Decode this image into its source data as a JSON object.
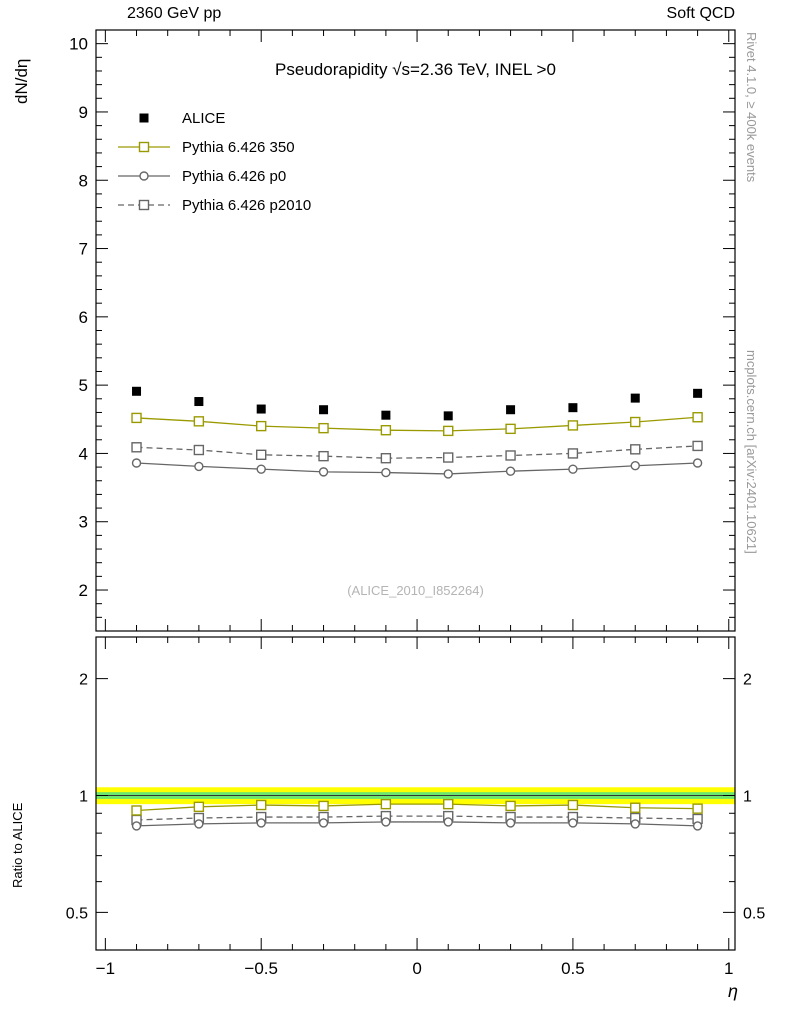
{
  "header": {
    "left": "2360 GeV pp",
    "right": "Soft QCD"
  },
  "side_texts": {
    "top_right": "Rivet 4.1.0, ≥ 400k events",
    "bottom_right": "mcplots.cern.ch [arXiv:2401.10621]"
  },
  "watermark": "(ALICE_2010_I852264)",
  "chart_data": {
    "type": "line",
    "title": "Pseudorapidity √s=2.36 TeV, INEL >0",
    "xlabel": "η",
    "ylabel_main": "dN/dη",
    "ylabel_ratio": "Ratio to ALICE",
    "x": [
      -0.9,
      -0.7,
      -0.5,
      -0.3,
      -0.1,
      0.1,
      0.3,
      0.5,
      0.7,
      0.9
    ],
    "xlim": [
      -1.03,
      1.02
    ],
    "xticks": [
      -1,
      -0.5,
      0,
      0.5,
      1
    ],
    "main": {
      "ylim": [
        1.4,
        10.2
      ],
      "yticks": [
        2,
        3,
        4,
        5,
        6,
        7,
        8,
        9,
        10
      ],
      "series": [
        {
          "name": "ALICE",
          "marker": "square-filled",
          "color": "#000000",
          "line": "none",
          "values": [
            4.91,
            4.76,
            4.65,
            4.64,
            4.56,
            4.55,
            4.64,
            4.67,
            4.81,
            4.88
          ]
        },
        {
          "name": "Pythia 6.426 350",
          "marker": "square-open",
          "color": "#9a9a00",
          "line": "solid",
          "values": [
            4.52,
            4.47,
            4.4,
            4.37,
            4.34,
            4.33,
            4.36,
            4.41,
            4.46,
            4.53
          ]
        },
        {
          "name": "Pythia 6.426 p0",
          "marker": "circle-open",
          "color": "#666666",
          "line": "solid",
          "values": [
            3.86,
            3.81,
            3.77,
            3.73,
            3.72,
            3.7,
            3.74,
            3.77,
            3.82,
            3.86
          ]
        },
        {
          "name": "Pythia 6.426 p2010",
          "marker": "square-open",
          "color": "#666666",
          "line": "dashed",
          "values": [
            4.09,
            4.05,
            3.98,
            3.96,
            3.93,
            3.94,
            3.97,
            4.0,
            4.06,
            4.11
          ]
        }
      ]
    },
    "ratio": {
      "scale": "log",
      "ylim": [
        0.4,
        2.56
      ],
      "yticks": [
        0.5,
        1,
        2
      ],
      "yticks_minor": [
        0.6,
        0.7,
        0.8,
        0.9
      ],
      "reference_line": 1,
      "bands": [
        {
          "color": "#ffff00",
          "lo": 0.95,
          "hi": 1.05
        },
        {
          "color": "#6ce66c",
          "lo": 0.98,
          "hi": 1.02
        }
      ],
      "series": [
        {
          "name": "Pythia 6.426 350",
          "marker": "square-open",
          "color": "#9a9a00",
          "line": "solid",
          "values": [
            0.915,
            0.935,
            0.945,
            0.94,
            0.95,
            0.95,
            0.94,
            0.945,
            0.93,
            0.925
          ]
        },
        {
          "name": "Pythia 6.426 p0",
          "marker": "circle-open",
          "color": "#666666",
          "line": "solid",
          "values": [
            0.835,
            0.845,
            0.85,
            0.85,
            0.855,
            0.855,
            0.85,
            0.85,
            0.845,
            0.835
          ]
        },
        {
          "name": "Pythia 6.426 p2010",
          "marker": "square-open",
          "color": "#666666",
          "line": "dashed",
          "values": [
            0.865,
            0.875,
            0.88,
            0.88,
            0.885,
            0.885,
            0.88,
            0.88,
            0.875,
            0.87
          ]
        }
      ]
    }
  }
}
